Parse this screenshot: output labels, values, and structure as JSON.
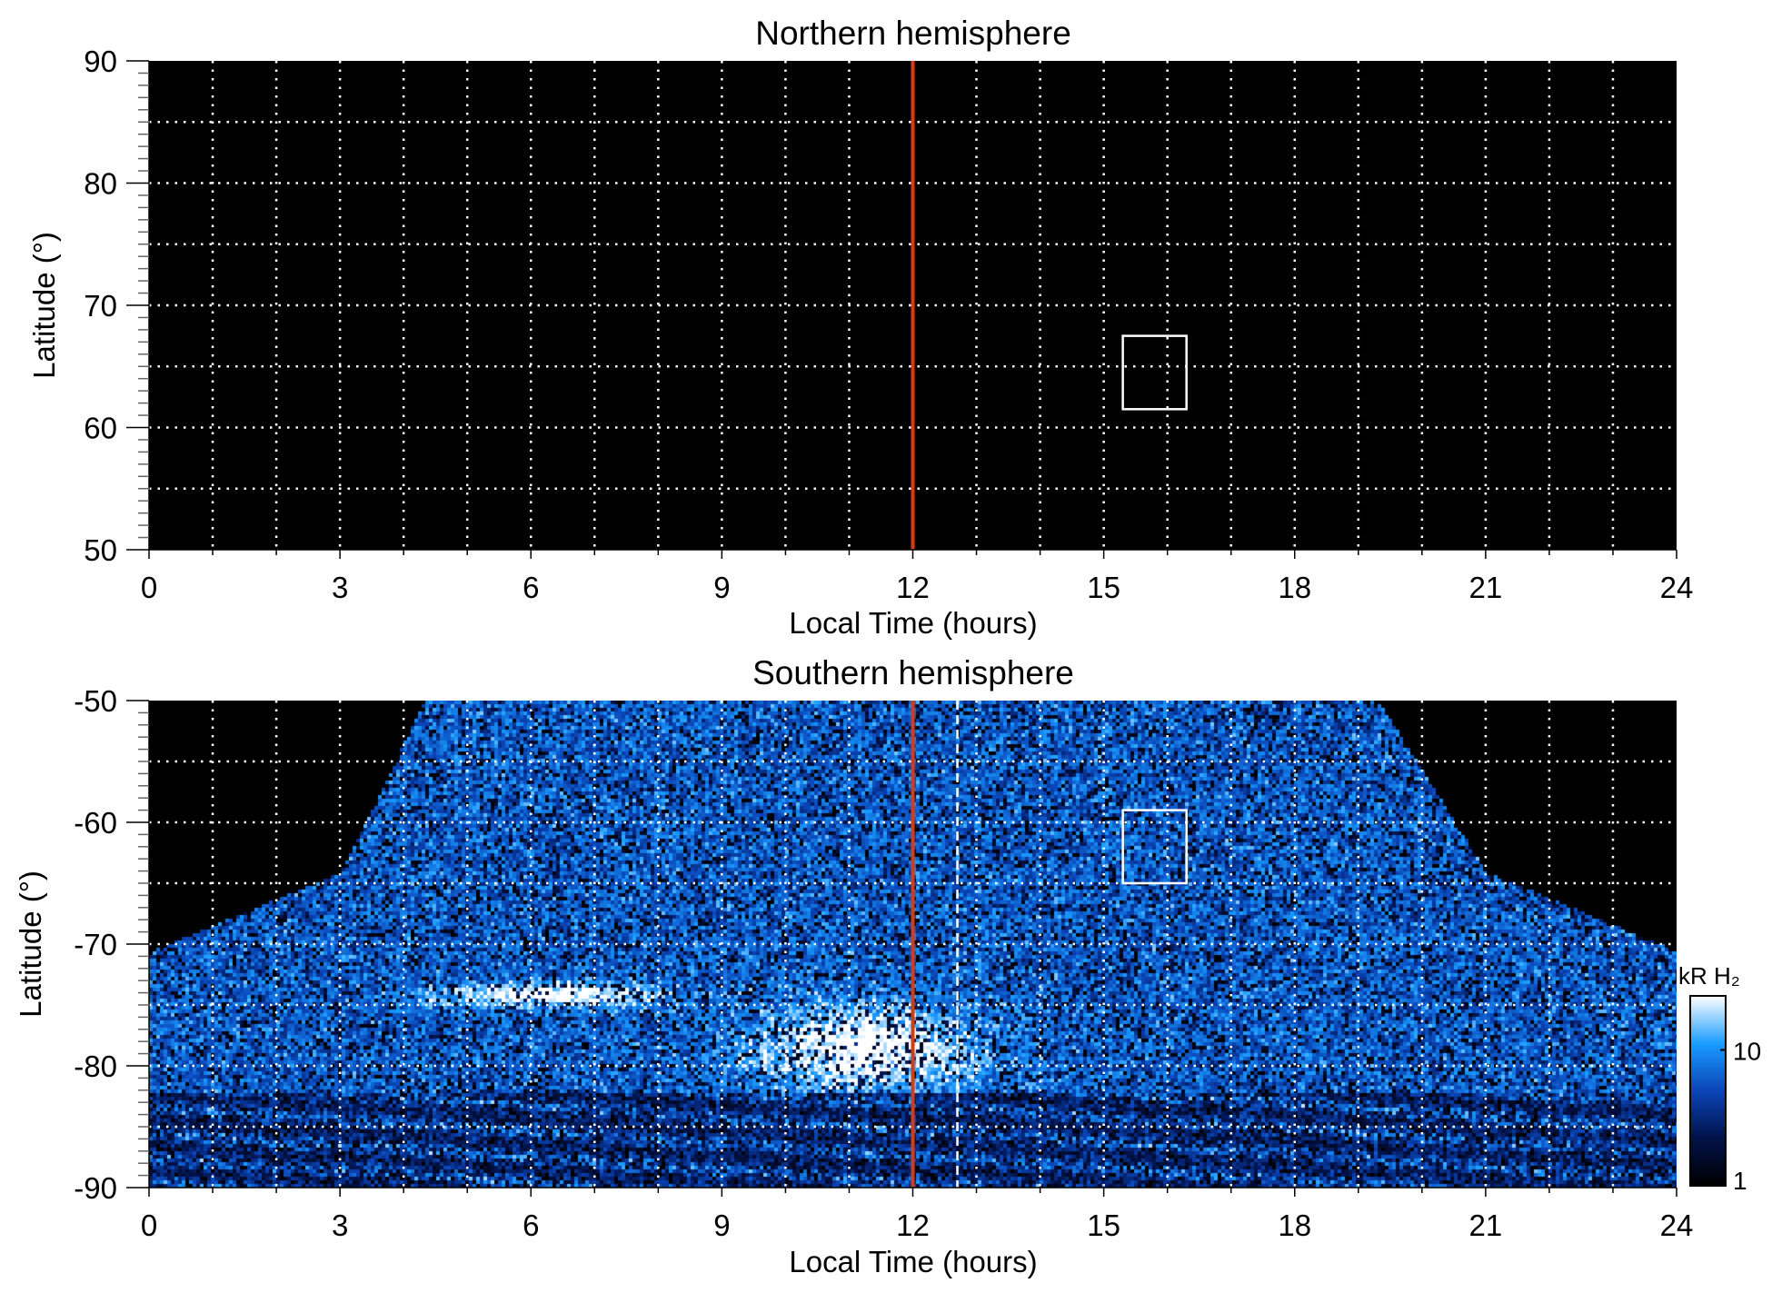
{
  "chart_data": [
    {
      "type": "heatmap",
      "title": "Northern hemisphere",
      "xlabel": "Local Time (hours)",
      "ylabel": "Latitude (°)",
      "xlim": [
        0,
        24
      ],
      "ylim": [
        50,
        90
      ],
      "xticks": [
        0,
        3,
        6,
        9,
        12,
        15,
        18,
        21,
        24
      ],
      "yticks": [
        50,
        60,
        70,
        80,
        90
      ],
      "grid": true,
      "data_coverage": "none (all black)",
      "vertical_line": {
        "x": 12,
        "color": "#d83a12"
      },
      "box": {
        "x": [
          15.3,
          16.3
        ],
        "y": [
          61.5,
          67.5
        ],
        "color": "#ffffff"
      }
    },
    {
      "type": "heatmap",
      "title": "Southern hemisphere",
      "xlabel": "Local Time (hours)",
      "ylabel": "Latitude (°)",
      "xlim": [
        0,
        24
      ],
      "ylim": [
        -90,
        -50
      ],
      "xticks": [
        0,
        3,
        6,
        9,
        12,
        15,
        18,
        21,
        24
      ],
      "yticks": [
        -90,
        -80,
        -70,
        -60,
        -50
      ],
      "grid": true,
      "coverage_edge": [
        [
          0,
          -70.5
        ],
        [
          3,
          -64
        ],
        [
          4.3,
          -50
        ],
        [
          19.3,
          -50
        ],
        [
          21,
          -64
        ],
        [
          24,
          -70.5
        ]
      ],
      "bright_regions": [
        {
          "description": "auroral emission peak",
          "x": [
            9.5,
            13
          ],
          "y": [
            -82,
            -75
          ]
        },
        {
          "description": "auroral band",
          "x": [
            4.5,
            8
          ],
          "y": [
            -75,
            -73
          ]
        }
      ],
      "vertical_line": {
        "x": 12,
        "color": "#d83a12"
      },
      "dashed_line": {
        "x": 12.7,
        "color": "#ffffff"
      },
      "box": {
        "x": [
          15.3,
          16.3
        ],
        "y": [
          -65,
          -59
        ],
        "color": "#ffffff"
      },
      "colorbar": {
        "label": "kR H₂",
        "scale": "log",
        "range": [
          1,
          25
        ],
        "ticks": [
          1,
          10
        ],
        "colors": [
          "#000000",
          "#02124a",
          "#0a45b8",
          "#1a9cff",
          "#ffffff"
        ]
      }
    }
  ]
}
